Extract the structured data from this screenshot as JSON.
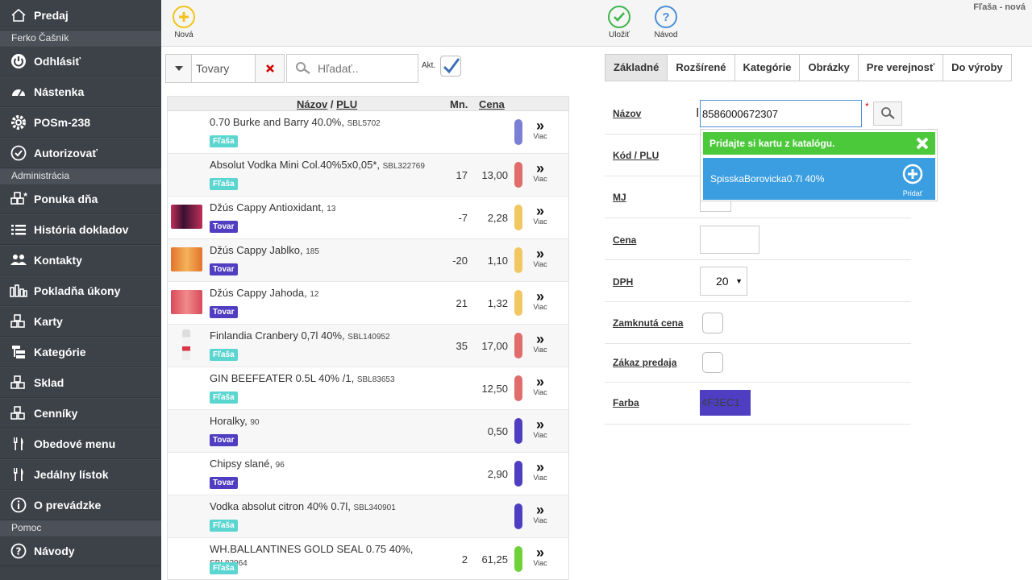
{
  "window": {
    "title": "Fľaša - nová"
  },
  "sidebar": {
    "top_item": {
      "label": "Predaj",
      "icon": "home-icon"
    },
    "groups": [
      {
        "title": "Ferko Čašník",
        "items": [
          {
            "label": "Odhlásiť",
            "icon": "power-icon"
          },
          {
            "label": "Nástenka",
            "icon": "dashboard-icon"
          },
          {
            "label": "POSm-238",
            "icon": "gear-icon"
          },
          {
            "label": "Autorizovať",
            "icon": "check-circle-icon"
          }
        ]
      },
      {
        "title": "Administrácia",
        "items": [
          {
            "label": "Ponuka dňa",
            "icon": "star-boxes-icon"
          },
          {
            "label": "História dokladov",
            "icon": "list-icon"
          },
          {
            "label": "Kontakty",
            "icon": "users-icon"
          },
          {
            "label": "Pokladňa úkony",
            "icon": "bars-icon"
          },
          {
            "label": "Karty",
            "icon": "boxes-icon"
          },
          {
            "label": "Kategórie",
            "icon": "tree-icon"
          },
          {
            "label": "Sklad",
            "icon": "boxes-icon"
          },
          {
            "label": "Cenníky",
            "icon": "boxes-icon"
          },
          {
            "label": "Obedové menu",
            "icon": "cutlery-icon"
          },
          {
            "label": "Jedálny lístok",
            "icon": "cutlery-icon"
          },
          {
            "label": "O prevádzke",
            "icon": "info-icon"
          }
        ]
      },
      {
        "title": "Pomoc",
        "items": [
          {
            "label": "Návody",
            "icon": "help-icon"
          }
        ]
      }
    ]
  },
  "toolbar": {
    "new_label": "Nová",
    "save_label": "Uložiť",
    "help_label": "Návod"
  },
  "filter": {
    "type_value": "Tovary",
    "search_placeholder": "Hľadať..",
    "active_label": "Akt."
  },
  "list": {
    "header_name": "Názov",
    "header_sep": " / ",
    "header_plu": "PLU",
    "header_qty": "Mn.",
    "header_price": "Cena",
    "more_label": "Viac",
    "items": [
      {
        "name": "0.70 Burke and Barry 40.0%",
        "plu": "SBL5702",
        "badge": "Fľaša",
        "qty": "",
        "price": "",
        "color": "#7b7fd6",
        "thumb": ""
      },
      {
        "name": "Absolut Vodka Mini Col.40%5x0,05*",
        "plu": "SBL322769",
        "badge": "Fľaša",
        "qty": "17",
        "price": "13,00",
        "color": "#e06c6c",
        "thumb": ""
      },
      {
        "name": "Džús Cappy Antioxidant",
        "plu": "13",
        "badge": "Tovar",
        "qty": "-7",
        "price": "2,28",
        "color": "#f2c661",
        "thumb": "dark"
      },
      {
        "name": "Džús Cappy Jablko",
        "plu": "185",
        "badge": "Tovar",
        "qty": "-20",
        "price": "1,10",
        "color": "#f2c661",
        "thumb": "orange"
      },
      {
        "name": "Džús Cappy Jahoda",
        "plu": "12",
        "badge": "Tovar",
        "qty": "21",
        "price": "1,32",
        "color": "#f2c661",
        "thumb": "red"
      },
      {
        "name": "Finlandia Cranbery 0,7l 40%",
        "plu": "SBL140952",
        "badge": "Fľaša",
        "qty": "35",
        "price": "17,00",
        "color": "#e06c6c",
        "thumb": "bottle"
      },
      {
        "name": "GIN BEEFEATER 0.5L 40% /1",
        "plu": "SBL83653",
        "badge": "Fľaša",
        "qty": "",
        "price": "12,50",
        "color": "#e06c6c",
        "thumb": ""
      },
      {
        "name": "Horalky",
        "plu": "90",
        "badge": "Tovar",
        "qty": "",
        "price": "0,50",
        "color": "#4f3ec1",
        "thumb": ""
      },
      {
        "name": "Chipsy slané",
        "plu": "96",
        "badge": "Tovar",
        "qty": "",
        "price": "2,90",
        "color": "#4f3ec1",
        "thumb": ""
      },
      {
        "name": "Vodka absolut citron 40% 0.7l",
        "plu": "SBL340901",
        "badge": "Fľaša",
        "qty": "",
        "price": "",
        "color": "#4f3ec1",
        "thumb": ""
      },
      {
        "name": "WH.BALLANTINES GOLD SEAL 0.75 40%",
        "plu": "SBL82964",
        "badge": "Fľaša",
        "qty": "2",
        "price": "61,25",
        "color": "#6fd13a",
        "thumb": ""
      }
    ]
  },
  "tabs": [
    "Základné",
    "Rozšírené",
    "Kategórie",
    "Obrázky",
    "Pre verejnosť",
    "Do výroby"
  ],
  "form": {
    "name_label": "Názov",
    "name_value": "8586000672307",
    "required_mark": "*",
    "code_label": "Kód / PLU",
    "unit_label": "MJ",
    "price_label": "Cena",
    "vat_label": "DPH",
    "vat_value": "20",
    "locked_price_label": "Zamknutá cena",
    "sale_ban_label": "Zákaz predaja",
    "color_label": "Farba",
    "color_value": "4F3EC1"
  },
  "catalog_popup": {
    "header": "Pridajte si kartu z katalógu.",
    "item_name": "SpisskaBorovicka0.7l 40%",
    "add_label": "Pridať"
  },
  "colors": {
    "sidebar_bg": "#3d4148",
    "badge_flasa": "#5bd5d0",
    "badge_tovar": "#4f3ec1",
    "popup_green": "#4cc93b",
    "popup_blue": "#3a9ee0",
    "product_color": "#4f3ec1"
  }
}
